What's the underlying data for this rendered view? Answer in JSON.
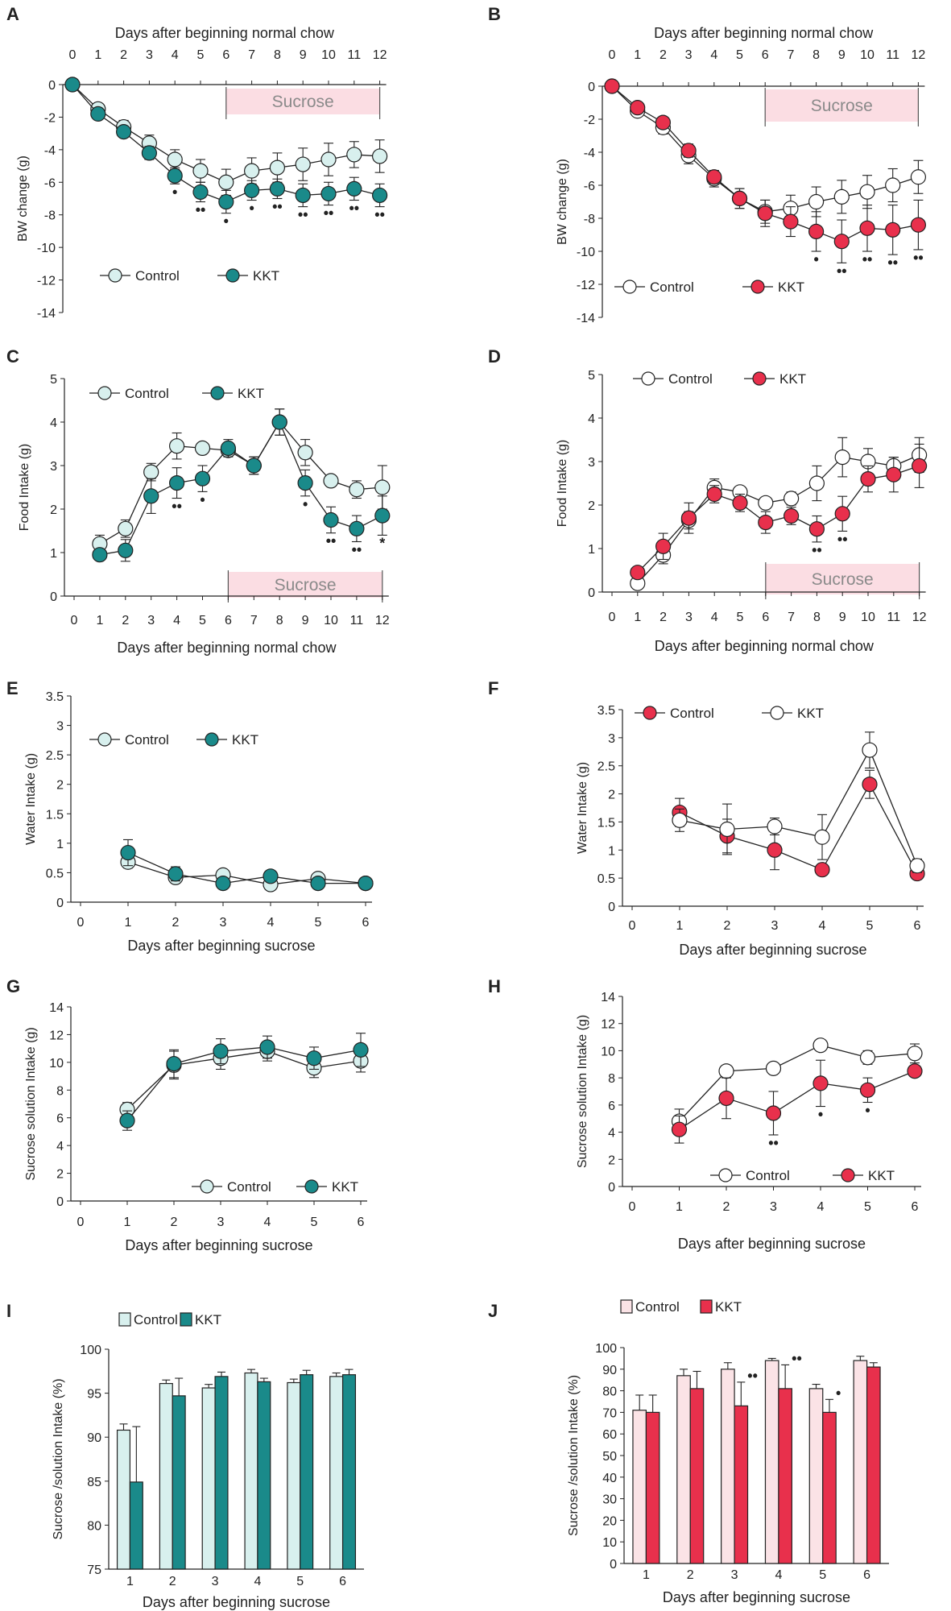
{
  "figure": {
    "colors": {
      "teal": "#1a8a8a",
      "teal_light": "#d8f0ee",
      "red": "#e8304c",
      "pink_light": "#fbe3e6",
      "band_fill": "#fbdde3",
      "band_text": "#8a8a8a",
      "axis": "#222222"
    }
  },
  "chart_data": [
    {
      "panel": "A",
      "type": "line",
      "xlabel": "Days after beginning normal chow",
      "xlabel_position": "top",
      "ylabel": "BW change (g)",
      "x": [
        0,
        1,
        2,
        3,
        4,
        5,
        6,
        7,
        8,
        9,
        10,
        11,
        12
      ],
      "xticks": [
        "0",
        "1",
        "2",
        "3",
        "4",
        "5",
        "6",
        "7",
        "8",
        "9",
        "10",
        "11",
        "12"
      ],
      "ylim": [
        -14,
        0
      ],
      "yticks": [
        "0",
        "-2",
        "-4",
        "-6",
        "-8",
        "-10",
        "-12",
        "-14"
      ],
      "band": {
        "label": "Sucrose",
        "x_start": 6,
        "x_end": 12
      },
      "legend": [
        "Control",
        "KKT"
      ],
      "series": [
        {
          "name": "Control",
          "values": [
            0,
            -1.5,
            -2.6,
            -3.6,
            -4.6,
            -5.3,
            -6.0,
            -5.3,
            -5.1,
            -4.9,
            -4.6,
            -4.3,
            -4.4
          ],
          "errors": [
            0.1,
            0.3,
            0.4,
            0.5,
            0.6,
            0.7,
            0.8,
            0.8,
            0.9,
            1.0,
            1.0,
            0.8,
            1.0
          ]
        },
        {
          "name": "KKT",
          "values": [
            0,
            -1.8,
            -2.9,
            -4.2,
            -5.6,
            -6.6,
            -7.2,
            -6.5,
            -6.4,
            -6.8,
            -6.7,
            -6.4,
            -6.8
          ],
          "errors": [
            0.1,
            0.2,
            0.3,
            0.4,
            0.5,
            0.6,
            0.7,
            0.6,
            0.6,
            0.7,
            0.7,
            0.7,
            0.7
          ]
        }
      ],
      "annotations": [
        {
          "x": 4,
          "text": "•"
        },
        {
          "x": 5,
          "text": "••"
        },
        {
          "x": 6,
          "text": "•"
        },
        {
          "x": 7,
          "text": "•"
        },
        {
          "x": 8,
          "text": "••"
        },
        {
          "x": 9,
          "text": "••"
        },
        {
          "x": 10,
          "text": "••"
        },
        {
          "x": 11,
          "text": "••"
        },
        {
          "x": 12,
          "text": "••"
        }
      ]
    },
    {
      "panel": "B",
      "type": "line",
      "xlabel": "Days after beginning normal chow",
      "xlabel_position": "top",
      "ylabel": "BW change (g)",
      "x": [
        0,
        1,
        2,
        3,
        4,
        5,
        6,
        7,
        8,
        9,
        10,
        11,
        12
      ],
      "xticks": [
        "0",
        "1",
        "2",
        "3",
        "4",
        "5",
        "6",
        "7",
        "8",
        "9",
        "10",
        "11",
        "12"
      ],
      "ylim": [
        -14,
        0
      ],
      "yticks": [
        "0",
        "-2",
        "-4",
        "-6",
        "-8",
        "-10",
        "-12",
        "-14"
      ],
      "band": {
        "label": "Sucrose",
        "x_start": 6,
        "x_end": 12
      },
      "legend": [
        "Control",
        "KKT"
      ],
      "series": [
        {
          "name": "Control",
          "values": [
            0,
            -1.5,
            -2.5,
            -4.2,
            -5.6,
            -6.8,
            -7.6,
            -7.4,
            -7.0,
            -6.7,
            -6.4,
            -6.0,
            -5.5
          ],
          "errors": [
            0.1,
            0.3,
            0.4,
            0.5,
            0.5,
            0.6,
            0.7,
            0.8,
            0.9,
            1.0,
            1.0,
            1.0,
            1.0
          ]
        },
        {
          "name": "KKT",
          "values": [
            0,
            -1.3,
            -2.2,
            -3.9,
            -5.5,
            -6.8,
            -7.7,
            -8.2,
            -8.8,
            -9.4,
            -8.6,
            -8.7,
            -8.4
          ],
          "errors": [
            0.1,
            0.2,
            0.3,
            0.4,
            0.4,
            0.6,
            0.8,
            0.9,
            1.2,
            1.3,
            1.4,
            1.5,
            1.5
          ]
        }
      ],
      "annotations": [
        {
          "x": 8,
          "text": "•"
        },
        {
          "x": 9,
          "text": "••"
        },
        {
          "x": 10,
          "text": "••"
        },
        {
          "x": 11,
          "text": "••"
        },
        {
          "x": 12,
          "text": "••"
        }
      ]
    },
    {
      "panel": "C",
      "type": "line",
      "xlabel": "Days after beginning normal chow",
      "xlabel_position": "bottom",
      "ylabel": "Food Intake (g)",
      "x": [
        1,
        2,
        3,
        4,
        5,
        6,
        7,
        8,
        9,
        10,
        11,
        12
      ],
      "xticks": [
        "0",
        "1",
        "2",
        "3",
        "4",
        "5",
        "6",
        "7",
        "8",
        "9",
        "10",
        "11",
        "12"
      ],
      "ylim": [
        0,
        5
      ],
      "yticks": [
        "0",
        "1",
        "2",
        "3",
        "4",
        "5"
      ],
      "band": {
        "label": "Sucrose",
        "x_start": 6,
        "x_end": 12
      },
      "legend": [
        "Control",
        "KKT"
      ],
      "series": [
        {
          "name": "Control",
          "values": [
            1.2,
            1.55,
            2.85,
            3.45,
            3.4,
            3.35,
            3.0,
            4.0,
            3.3,
            2.65,
            2.45,
            2.5
          ],
          "errors": [
            0.2,
            0.2,
            0.2,
            0.3,
            0.1,
            0.1,
            0.2,
            0.3,
            0.3,
            0.1,
            0.2,
            0.5
          ]
        },
        {
          "name": "KKT",
          "values": [
            0.95,
            1.05,
            2.3,
            2.6,
            2.7,
            3.4,
            3.0,
            4.0,
            2.6,
            1.75,
            1.55,
            1.85
          ],
          "errors": [
            0.1,
            0.25,
            0.4,
            0.35,
            0.3,
            0.2,
            0.2,
            0.3,
            0.3,
            0.3,
            0.3,
            0.45
          ]
        }
      ],
      "annotations": [
        {
          "x": 4,
          "text": "••"
        },
        {
          "x": 5,
          "text": "•"
        },
        {
          "x": 9,
          "text": "•"
        },
        {
          "x": 10,
          "text": "••"
        },
        {
          "x": 11,
          "text": "••"
        },
        {
          "x": 12,
          "text": "*"
        }
      ]
    },
    {
      "panel": "D",
      "type": "line",
      "xlabel": "Days after beginning normal chow",
      "xlabel_position": "bottom",
      "ylabel": "Food Intake (g)",
      "x": [
        1,
        2,
        3,
        4,
        5,
        6,
        7,
        8,
        9,
        10,
        11,
        12
      ],
      "xticks": [
        "0",
        "1",
        "2",
        "3",
        "4",
        "5",
        "6",
        "7",
        "8",
        "9",
        "10",
        "11",
        "12"
      ],
      "ylim": [
        0,
        5
      ],
      "yticks": [
        "0",
        "1",
        "2",
        "3",
        "4",
        "5"
      ],
      "band": {
        "label": "Sucrose",
        "x_start": 6,
        "x_end": 12
      },
      "legend": [
        "Control",
        "KKT"
      ],
      "series": [
        {
          "name": "Control",
          "values": [
            0.2,
            0.85,
            1.65,
            2.4,
            2.3,
            2.05,
            2.15,
            2.5,
            3.1,
            3.0,
            2.9,
            3.15
          ],
          "errors": [
            0.1,
            0.2,
            0.2,
            0.2,
            0.1,
            0.1,
            0.15,
            0.4,
            0.45,
            0.3,
            0.2,
            0.4
          ]
        },
        {
          "name": "KKT",
          "values": [
            0.45,
            1.05,
            1.7,
            2.25,
            2.05,
            1.6,
            1.75,
            1.45,
            1.8,
            2.6,
            2.7,
            2.9
          ],
          "errors": [
            0.1,
            0.3,
            0.35,
            0.2,
            0.2,
            0.25,
            0.2,
            0.3,
            0.4,
            0.3,
            0.4,
            0.5
          ]
        }
      ],
      "annotations": [
        {
          "x": 8,
          "text": "••"
        },
        {
          "x": 9,
          "text": "••"
        }
      ]
    },
    {
      "panel": "E",
      "type": "line",
      "xlabel": "Days after beginning sucrose",
      "xlabel_position": "bottom",
      "ylabel": "Water Intake (g)",
      "x": [
        1,
        2,
        3,
        4,
        5,
        6
      ],
      "xticks": [
        "0",
        "1",
        "2",
        "3",
        "4",
        "5",
        "6"
      ],
      "ylim": [
        0,
        3.5
      ],
      "yticks": [
        "0",
        "0.5",
        "1",
        "1.5",
        "2",
        "2.5",
        "3",
        "3.5"
      ],
      "legend": [
        "Control",
        "KKT"
      ],
      "series": [
        {
          "name": "Control",
          "values": [
            0.68,
            0.42,
            0.46,
            0.3,
            0.4,
            0.32
          ],
          "errors": [
            0.1,
            0.08,
            0.05,
            0.05,
            0.04,
            0.04
          ]
        },
        {
          "name": "KKT",
          "values": [
            0.84,
            0.48,
            0.32,
            0.44,
            0.32,
            0.32
          ],
          "errors": [
            0.22,
            0.12,
            0.05,
            0.05,
            0.05,
            0.04
          ]
        }
      ],
      "annotations": []
    },
    {
      "panel": "F",
      "type": "line",
      "xlabel": "Days after beginning sucrose",
      "xlabel_position": "bottom",
      "ylabel": "Water Intake (g)",
      "x": [
        1,
        2,
        3,
        4,
        5,
        6
      ],
      "xticks": [
        "0",
        "1",
        "2",
        "3",
        "4",
        "5",
        "6"
      ],
      "ylim": [
        0,
        3.5
      ],
      "yticks": [
        "0",
        "0.5",
        "1",
        "1.5",
        "2",
        "2.5",
        "3",
        "3.5"
      ],
      "legend": [
        "Control",
        "KKT"
      ],
      "series": [
        {
          "name": "Control",
          "values": [
            1.67,
            1.25,
            1.0,
            0.65,
            2.17,
            0.58
          ],
          "errors": [
            0.25,
            0.3,
            0.35,
            0.05,
            0.25,
            0.1
          ]
        },
        {
          "name": "KKT",
          "values": [
            1.53,
            1.37,
            1.42,
            1.23,
            2.78,
            0.72
          ],
          "errors": [
            0.2,
            0.45,
            0.15,
            0.4,
            0.32,
            0.12
          ]
        }
      ],
      "annotations": []
    },
    {
      "panel": "G",
      "type": "line",
      "xlabel": "Days after beginning sucrose",
      "xlabel_position": "bottom",
      "ylabel": "Sucrose solution Intake (g)",
      "x": [
        1,
        2,
        3,
        4,
        5,
        6
      ],
      "xticks": [
        "0",
        "1",
        "2",
        "3",
        "4",
        "5",
        "6"
      ],
      "ylim": [
        0,
        14
      ],
      "yticks": [
        "0",
        "2",
        "4",
        "6",
        "8",
        "10",
        "12",
        "14"
      ],
      "legend": [
        "Control",
        "KKT"
      ],
      "series": [
        {
          "name": "Control",
          "values": [
            6.6,
            9.8,
            10.3,
            10.8,
            9.6,
            10.1
          ],
          "errors": [
            0.5,
            1.0,
            0.8,
            0.7,
            0.7,
            0.8
          ]
        },
        {
          "name": "KKT",
          "values": [
            5.8,
            9.9,
            10.8,
            11.1,
            10.3,
            10.9
          ],
          "errors": [
            0.7,
            1.0,
            0.9,
            0.8,
            0.8,
            1.2
          ]
        }
      ],
      "annotations": []
    },
    {
      "panel": "H",
      "type": "line",
      "xlabel": "Days after beginning  sucrose",
      "xlabel_position": "bottom",
      "ylabel": "Sucrose solution Intake (g)",
      "x": [
        1,
        2,
        3,
        4,
        5,
        6
      ],
      "xticks": [
        "0",
        "1",
        "2",
        "3",
        "4",
        "5",
        "6"
      ],
      "ylim": [
        0,
        14
      ],
      "yticks": [
        "0",
        "2",
        "4",
        "6",
        "8",
        "10",
        "12",
        "14"
      ],
      "legend": [
        "Control",
        "KKT"
      ],
      "series": [
        {
          "name": "Control",
          "values": [
            4.8,
            8.5,
            8.7,
            10.4,
            9.5,
            9.8
          ],
          "errors": [
            0.9,
            0.4,
            0.3,
            0.3,
            0.5,
            0.7
          ]
        },
        {
          "name": "KKT",
          "values": [
            4.2,
            6.5,
            5.4,
            7.6,
            7.1,
            8.5
          ],
          "errors": [
            1.0,
            1.5,
            1.6,
            1.7,
            0.9,
            0.4
          ]
        }
      ],
      "annotations": [
        {
          "x": 3,
          "text": "••"
        },
        {
          "x": 4,
          "text": "•"
        },
        {
          "x": 5,
          "text": "•"
        }
      ]
    },
    {
      "panel": "I",
      "type": "bar",
      "xlabel": "Days after beginning sucrose",
      "ylabel": "Sucrose /solution Intake (%)",
      "categories": [
        "1",
        "2",
        "3",
        "4",
        "5",
        "6"
      ],
      "ylim": [
        75,
        100
      ],
      "yticks": [
        "75",
        "80",
        "85",
        "90",
        "95",
        "100"
      ],
      "legend": [
        "Control",
        "KKT"
      ],
      "series": [
        {
          "name": "Control",
          "values": [
            90.8,
            96.1,
            95.6,
            97.3,
            96.2,
            96.9
          ],
          "errors": [
            0.7,
            0.4,
            0.4,
            0.4,
            0.4,
            0.4
          ]
        },
        {
          "name": "KKT",
          "values": [
            84.9,
            94.7,
            96.9,
            96.3,
            97.1,
            97.1
          ],
          "errors": [
            6.3,
            2.0,
            0.5,
            0.4,
            0.5,
            0.6
          ]
        }
      ],
      "annotations": []
    },
    {
      "panel": "J",
      "type": "bar",
      "xlabel": "Days after beginning sucrose",
      "ylabel": "Sucrose /solution Intake (%)",
      "categories": [
        "1",
        "2",
        "3",
        "4",
        "5",
        "6"
      ],
      "ylim": [
        0,
        100
      ],
      "yticks": [
        "0",
        "10",
        "20",
        "30",
        "40",
        "50",
        "60",
        "70",
        "80",
        "90",
        "100"
      ],
      "legend": [
        "Control",
        "KKT"
      ],
      "series": [
        {
          "name": "Control",
          "values": [
            71,
            87,
            90,
            94,
            81,
            94
          ],
          "errors": [
            7,
            3,
            3,
            1,
            2,
            2
          ]
        },
        {
          "name": "KKT",
          "values": [
            70,
            81,
            73,
            81,
            70,
            91
          ],
          "errors": [
            8,
            8,
            11,
            11,
            6,
            2
          ]
        }
      ],
      "annotations": [
        {
          "i": 2,
          "text": "••"
        },
        {
          "i": 3,
          "text": "••"
        },
        {
          "i": 4,
          "text": "•"
        }
      ]
    }
  ]
}
